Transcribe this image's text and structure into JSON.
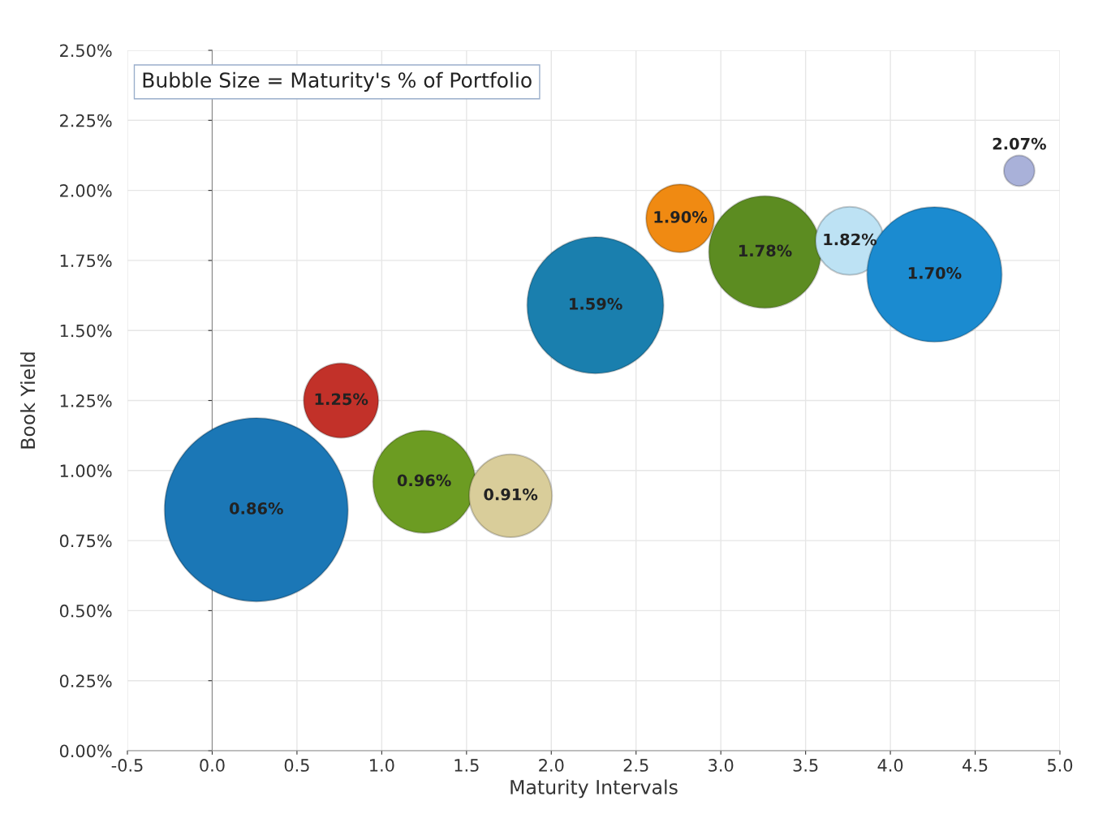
{
  "chart_data": {
    "type": "bubble",
    "xlabel": "Maturity Intervals",
    "ylabel": "Book Yield",
    "annotations": [
      "Bubble Size = Maturity's % of Portfolio"
    ],
    "x": [
      0.26,
      0.76,
      1.25,
      1.76,
      2.26,
      2.76,
      3.26,
      3.76,
      4.26,
      4.76
    ],
    "values": [
      0.86,
      1.25,
      0.96,
      0.91,
      1.59,
      1.9,
      1.78,
      1.82,
      1.7,
      2.07
    ],
    "sizes": [
      1,
      0.166,
      0.311,
      0.204,
      0.553,
      0.138,
      0.373,
      0.138,
      0.54,
      0.028
    ],
    "colors": [
      "#1b77b6",
      "#c23129",
      "#6c9c22",
      "#d9cd9a",
      "#1a7fae",
      "#f08a12",
      "#5c8c21",
      "#bde2f4",
      "#1b8bd0",
      "#a9b1d9"
    ],
    "value_labels": [
      "0.86%",
      "1.25%",
      "0.96%",
      "0.91%",
      "1.59%",
      "1.90%",
      "1.78%",
      "1.82%",
      "1.70%",
      "2.07%"
    ],
    "xlim": [
      -0.5,
      5.0
    ],
    "xticks": [
      {
        "value": -0.5,
        "label": "-0.5"
      },
      {
        "value": 0,
        "label": "0.0"
      },
      0.5,
      {
        "value": 1,
        "label": "1.0"
      },
      1.5,
      {
        "value": 2,
        "label": "2.0"
      },
      2.5,
      {
        "value": 3,
        "label": "3.0"
      },
      3.5,
      {
        "value": 4,
        "label": "4.0"
      },
      4.5,
      {
        "value": 5,
        "label": "5.0"
      }
    ],
    "ylim": [
      0,
      2.5
    ],
    "yticks": [
      {
        "value": 0,
        "label": "0.00%"
      },
      {
        "value": 0.25,
        "label": "0.25%"
      },
      {
        "value": 0.5,
        "label": "0.50%"
      },
      {
        "value": 0.75,
        "label": "0.75%"
      },
      {
        "value": 1,
        "label": "1.00%"
      },
      {
        "value": 1.25,
        "label": "1.25%"
      },
      {
        "value": 1.5,
        "label": "1.50%"
      },
      {
        "value": 1.75,
        "label": "1.75%"
      },
      {
        "value": 2,
        "label": "2.00%"
      },
      {
        "value": 2.25,
        "label": "2.25%"
      },
      {
        "value": 2.5,
        "label": "2.50%"
      }
    ],
    "grid": true
  }
}
